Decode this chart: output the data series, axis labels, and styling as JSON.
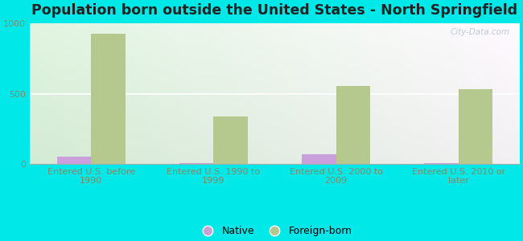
{
  "title": "Population born outside the United States - North Springfield",
  "categories": [
    "Entered U.S. before\n1990",
    "Entered U.S. 1990 to\n1999",
    "Entered U.S. 2000 to\n2009",
    "Entered U.S. 2010 or\nlater"
  ],
  "native_values": [
    50,
    5,
    70,
    5
  ],
  "foreign_values": [
    930,
    340,
    555,
    530
  ],
  "native_color": "#c9a0dc",
  "foreign_color": "#b5c98e",
  "background_outer": "#00e8e8",
  "ylim": [
    0,
    1000
  ],
  "yticks": [
    0,
    500,
    1000
  ],
  "title_fontsize": 12.5,
  "tick_fontsize": 8,
  "legend_fontsize": 9,
  "bar_width": 0.28,
  "watermark": "City-Data.com",
  "axis_label_color": "#888866",
  "grid_color": "#ddeecc"
}
